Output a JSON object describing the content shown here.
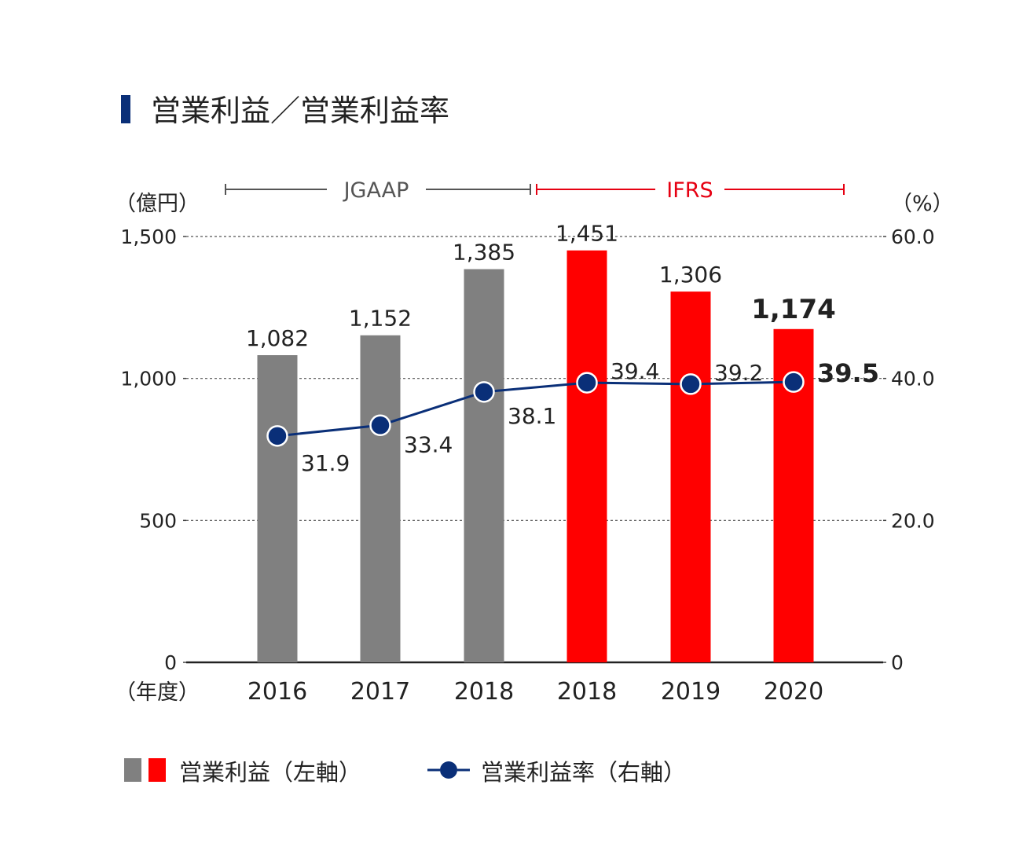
{
  "title": "営業利益／営業利益率",
  "units": {
    "left": "（億円）",
    "right": "（%）",
    "x": "（年度）"
  },
  "standards": [
    {
      "label": "JGAAP",
      "color": "#555555"
    },
    {
      "label": "IFRS",
      "color": "#e60012"
    }
  ],
  "legend": {
    "bar_label": "営業利益（左軸）",
    "line_label": "営業利益率（右軸）"
  },
  "colors": {
    "jgaap_bar": "#808080",
    "ifrs_bar": "#ff0000",
    "line": "#0a2f78",
    "title_marker": "#0a2f78"
  },
  "chart_data": {
    "type": "bar",
    "categories": [
      "2016",
      "2017",
      "2018",
      "2018",
      "2019",
      "2020"
    ],
    "standard_of_category": [
      "JGAAP",
      "JGAAP",
      "JGAAP",
      "IFRS",
      "IFRS",
      "IFRS"
    ],
    "series": [
      {
        "name": "営業利益（左軸）",
        "type": "bar",
        "axis": "left",
        "values": [
          1082,
          1152,
          1385,
          1451,
          1306,
          1174
        ],
        "labels": [
          "1,082",
          "1,152",
          "1,385",
          "1,451",
          "1,306",
          "1,174"
        ]
      },
      {
        "name": "営業利益率（右軸）",
        "type": "line",
        "axis": "right",
        "values": [
          31.9,
          33.4,
          38.1,
          39.4,
          39.2,
          39.5
        ],
        "labels": [
          "31.9",
          "33.4",
          "38.1",
          "39.4",
          "39.2",
          "39.5"
        ]
      }
    ],
    "left_axis": {
      "ylim": [
        0,
        1500
      ],
      "ticks": [
        "0",
        "500",
        "1,000",
        "1,500"
      ]
    },
    "right_axis": {
      "ylim": [
        0,
        60
      ],
      "ticks": [
        "0",
        "20.0",
        "40.0",
        "60.0"
      ]
    },
    "highlight_last": true,
    "grid": true
  }
}
